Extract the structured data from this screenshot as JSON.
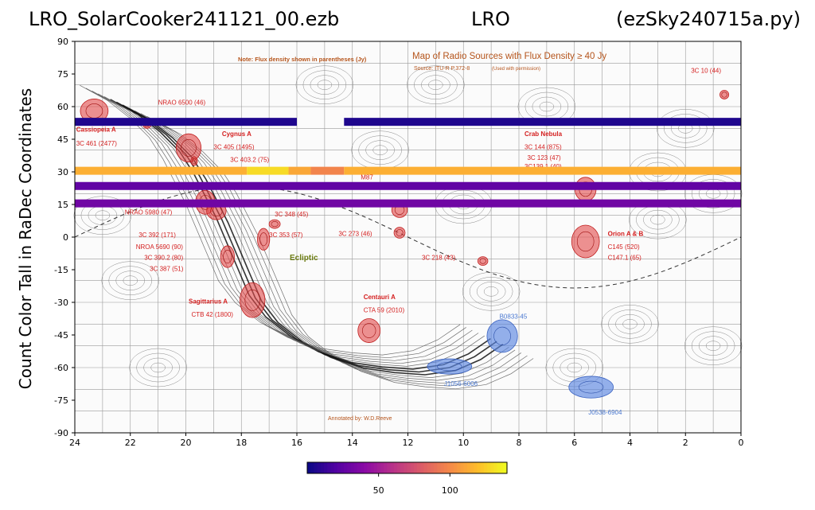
{
  "header": {
    "file_name": "LRO_SolarCooker241121_00.ezb",
    "site": "LRO",
    "program": "(ezSky240715a.py)"
  },
  "chart_data": {
    "type": "heatmap",
    "title": "",
    "ylabel": "Count Color Tall in RaDec Coordinates",
    "xlabel": "",
    "xlim": [
      24,
      0
    ],
    "ylim": [
      -90,
      90
    ],
    "x_ticks": [
      "24",
      "22",
      "20",
      "18",
      "16",
      "14",
      "12",
      "10",
      "8",
      "6",
      "4",
      "2",
      "0"
    ],
    "y_ticks": [
      "90",
      "75",
      "60",
      "45",
      "30",
      "15",
      "0",
      "-15",
      "-30",
      "-45",
      "-60",
      "-75",
      "-90"
    ],
    "background_map": {
      "title": "Map of Radio Sources with Flux Density ≥ 40 Jy",
      "source": "Source: ITU-R P.372-8",
      "source_note": "(Used with permission)",
      "note": "Note: Flux density shown in parentheses (Jy)",
      "annotated_by": "Annotated by: W.D.Reeve",
      "ecliptic_label": "Ecliptic",
      "labels": [
        {
          "text": "NRAO 6500 (46)",
          "ra": 21.0,
          "dec": 61,
          "color": "#d42020"
        },
        {
          "text": "Cassiopeia A",
          "ra": 23.95,
          "dec": 48.5,
          "color": "#d42020",
          "bold": true
        },
        {
          "text": "3C 461 (2477)",
          "ra": 23.95,
          "dec": 42,
          "color": "#d42020"
        },
        {
          "text": "Cygnus A",
          "ra": 18.7,
          "dec": 46.5,
          "color": "#d42020",
          "bold": true
        },
        {
          "text": "3C 405 (1495)",
          "ra": 19.0,
          "dec": 40.5,
          "color": "#d42020"
        },
        {
          "text": "3C 403.2 (75)",
          "ra": 18.4,
          "dec": 34.5,
          "color": "#d42020"
        },
        {
          "text": "Crab Nebula",
          "ra": 7.8,
          "dec": 46.5,
          "color": "#d42020",
          "bold": true
        },
        {
          "text": "3C 144 (875)",
          "ra": 7.8,
          "dec": 40.5,
          "color": "#d42020"
        },
        {
          "text": "3C 123 (47)",
          "ra": 7.7,
          "dec": 35.5,
          "color": "#d42020"
        },
        {
          "text": "3C139.1 (40)",
          "ra": 7.8,
          "dec": 31.5,
          "color": "#d42020"
        },
        {
          "text": "M87",
          "ra": 13.7,
          "dec": 26.5,
          "color": "#d42020"
        },
        {
          "text": "3C 10 (44)",
          "ra": 1.8,
          "dec": 75.5,
          "color": "#d42020"
        },
        {
          "text": "NRAO 5980 (47)",
          "ra": 22.2,
          "dec": 10.5,
          "color": "#d42020"
        },
        {
          "text": "3C 348 (45)",
          "ra": 16.8,
          "dec": 9.5,
          "color": "#d42020"
        },
        {
          "text": "3C 392 (171)",
          "ra": 21.7,
          "dec": 0,
          "color": "#d42020"
        },
        {
          "text": "NROA 5690 (90)",
          "ra": 21.8,
          "dec": -5.5,
          "color": "#d42020"
        },
        {
          "text": "3C 390.2 (80)",
          "ra": 21.5,
          "dec": -10.5,
          "color": "#d42020"
        },
        {
          "text": "3C 387 (51)",
          "ra": 21.3,
          "dec": -15.5,
          "color": "#d42020"
        },
        {
          "text": "3C 353 (57)",
          "ra": 17.0,
          "dec": 0,
          "color": "#d42020"
        },
        {
          "text": "3C 273 (46)",
          "ra": 14.5,
          "dec": 0.5,
          "color": "#d42020"
        },
        {
          "text": "3C 218 (43)",
          "ra": 11.5,
          "dec": -10.5,
          "color": "#d42020"
        },
        {
          "text": "Orion A & B",
          "ra": 4.8,
          "dec": 0.5,
          "color": "#d42020",
          "bold": true
        },
        {
          "text": "C145 (520)",
          "ra": 4.8,
          "dec": -5.5,
          "color": "#d42020"
        },
        {
          "text": "C147.1 (65)",
          "ra": 4.8,
          "dec": -10.5,
          "color": "#d42020"
        },
        {
          "text": "Sagittarius A",
          "ra": 19.9,
          "dec": -30.5,
          "color": "#d42020",
          "bold": true
        },
        {
          "text": "CTB 42 (1800)",
          "ra": 19.8,
          "dec": -36.5,
          "color": "#d42020"
        },
        {
          "text": "Centauri A",
          "ra": 13.6,
          "dec": -28.5,
          "color": "#d42020",
          "bold": true
        },
        {
          "text": "CTA 59 (2010)",
          "ra": 13.6,
          "dec": -34.5,
          "color": "#d42020"
        },
        {
          "text": "B0833-45",
          "ra": 8.7,
          "dec": -37.5,
          "color": "#4a78d0"
        },
        {
          "text": "J1056-6006",
          "ra": 10.7,
          "dec": -68.5,
          "color": "#4a78d0"
        },
        {
          "text": "J0538-6904",
          "ra": 5.5,
          "dec": -81.5,
          "color": "#4a78d0"
        }
      ],
      "sources_red": [
        {
          "ra": 23.3,
          "dec": 58,
          "rra": 0.5,
          "rdec": 5.5
        },
        {
          "ra": 21.4,
          "dec": 52,
          "rra": 0.15,
          "rdec": 2
        },
        {
          "ra": 19.9,
          "dec": 41,
          "rra": 0.45,
          "rdec": 6.5
        },
        {
          "ra": 19.7,
          "dec": 35,
          "rra": 0.12,
          "rdec": 2
        },
        {
          "ra": 19.3,
          "dec": 16,
          "rra": 0.35,
          "rdec": 5.5
        },
        {
          "ra": 18.9,
          "dec": 12,
          "rra": 0.35,
          "rdec": 4
        },
        {
          "ra": 17.2,
          "dec": -1,
          "rra": 0.22,
          "rdec": 5
        },
        {
          "ra": 16.8,
          "dec": 6,
          "rra": 0.2,
          "rdec": 2
        },
        {
          "ra": 18.5,
          "dec": -9,
          "rra": 0.25,
          "rdec": 5
        },
        {
          "ra": 17.6,
          "dec": -29,
          "rra": 0.45,
          "rdec": 8
        },
        {
          "ra": 12.3,
          "dec": 12.5,
          "rra": 0.28,
          "rdec": 3.5
        },
        {
          "ra": 12.3,
          "dec": 2,
          "rra": 0.2,
          "rdec": 2.5
        },
        {
          "ra": 13.4,
          "dec": -43,
          "rra": 0.4,
          "rdec": 5.5
        },
        {
          "ra": 9.3,
          "dec": -11,
          "rra": 0.18,
          "rdec": 2
        },
        {
          "ra": 5.6,
          "dec": 22,
          "rra": 0.38,
          "rdec": 5.5
        },
        {
          "ra": 5.6,
          "dec": -2,
          "rra": 0.5,
          "rdec": 7.5
        },
        {
          "ra": 0.6,
          "dec": 65.5,
          "rra": 0.16,
          "rdec": 2
        }
      ],
      "sources_blue": [
        {
          "ra": 8.6,
          "dec": -45.5,
          "rra": 0.55,
          "rdec": 7.5
        },
        {
          "ra": 10.5,
          "dec": -59.5,
          "rra": 0.8,
          "rdec": 3.5
        },
        {
          "ra": 5.4,
          "dec": -69,
          "rra": 0.8,
          "rdec": 5
        }
      ]
    },
    "bands": [
      {
        "dec": 53.0,
        "segments": [
          {
            "ra_from": 24,
            "ra_to": 16.0,
            "value": 5
          },
          {
            "ra_from": 14.3,
            "ra_to": 0,
            "value": 5
          }
        ]
      },
      {
        "dec": 30.5,
        "segments": [
          {
            "ra_from": 24,
            "ra_to": 17.8,
            "value": 115
          },
          {
            "ra_from": 17.8,
            "ra_to": 16.3,
            "value": 130
          },
          {
            "ra_from": 16.3,
            "ra_to": 15.5,
            "value": 112
          },
          {
            "ra_from": 15.5,
            "ra_to": 14.3,
            "value": 98
          },
          {
            "ra_from": 14.3,
            "ra_to": 0,
            "value": 115
          }
        ]
      },
      {
        "dec": 23.5,
        "segments": [
          {
            "ra_from": 24,
            "ra_to": 0,
            "value": 25
          }
        ]
      },
      {
        "dec": 15.5,
        "segments": [
          {
            "ra_from": 24,
            "ra_to": 0,
            "value": 30
          }
        ]
      }
    ],
    "colorbar": {
      "colormap": "plasma",
      "min": 0,
      "max": 140,
      "ticks": [
        "50",
        "100"
      ]
    }
  }
}
